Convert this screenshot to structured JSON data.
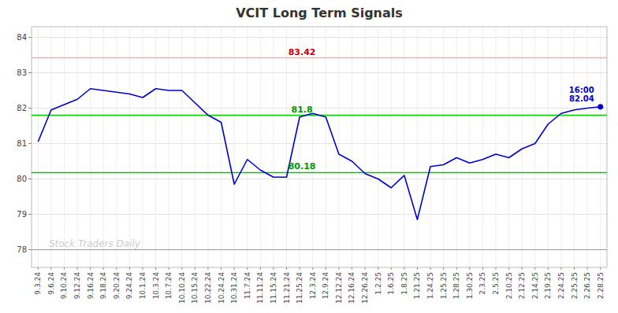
{
  "chart_data": {
    "type": "line",
    "title": "VCIT Long Term Signals",
    "categories": [
      "9.3.24",
      "9.6.24",
      "9.10.24",
      "9.12.24",
      "9.16.24",
      "9.18.24",
      "9.20.24",
      "9.24.24",
      "10.1.24",
      "10.3.24",
      "10.7.24",
      "10.10.24",
      "10.15.24",
      "10.22.24",
      "10.24.24",
      "10.31.24",
      "11.7.24",
      "11.11.24",
      "11.15.24",
      "11.21.24",
      "11.25.24",
      "12.3.24",
      "12.9.24",
      "12.12.24",
      "12.16.24",
      "12.26.24",
      "1.2.25",
      "1.6.25",
      "1.8.25",
      "1.21.25",
      "1.24.25",
      "1.25.25",
      "1.28.25",
      "1.30.25",
      "2.3.25",
      "2.5.25",
      "2.10.25",
      "2.12.25",
      "2.14.25",
      "2.19.25",
      "2.24.25",
      "2.25.25",
      "2.26.25",
      "2.28.25"
    ],
    "values": [
      81.05,
      81.95,
      82.1,
      82.25,
      82.55,
      82.5,
      82.45,
      82.4,
      82.3,
      82.55,
      82.5,
      82.5,
      82.15,
      81.8,
      81.6,
      79.85,
      80.55,
      80.25,
      80.05,
      80.05,
      81.75,
      81.85,
      81.75,
      80.7,
      80.5,
      80.15,
      80.0,
      79.75,
      80.1,
      78.85,
      80.35,
      80.4,
      80.6,
      80.45,
      80.55,
      80.7,
      80.6,
      80.85,
      81.0,
      81.55,
      81.85,
      81.95,
      82.0,
      82.04
    ],
    "color": "#0000cc",
    "hlines": [
      {
        "value": 83.42,
        "color": "#ffaaaa",
        "label": "83.42",
        "label_color": "#cc0000"
      },
      {
        "value": 81.8,
        "color": "#00cc00",
        "label": "81.8",
        "label_color": "#009900"
      },
      {
        "value": 80.18,
        "color": "#00cc00",
        "label": "80.18",
        "label_color": "#009900"
      },
      {
        "value": 78.0,
        "color": "#999999"
      }
    ],
    "annotations": [
      {
        "text": "16:00",
        "color": "#0000cc"
      },
      {
        "text": "82.04",
        "color": "#0000cc"
      }
    ],
    "watermark": {
      "text": "Stock Traders Daily",
      "color": "#cccccc"
    },
    "ylim": [
      77.5,
      84.3
    ],
    "yticks": [
      78,
      79,
      80,
      81,
      82,
      83,
      84
    ],
    "grid": true
  }
}
